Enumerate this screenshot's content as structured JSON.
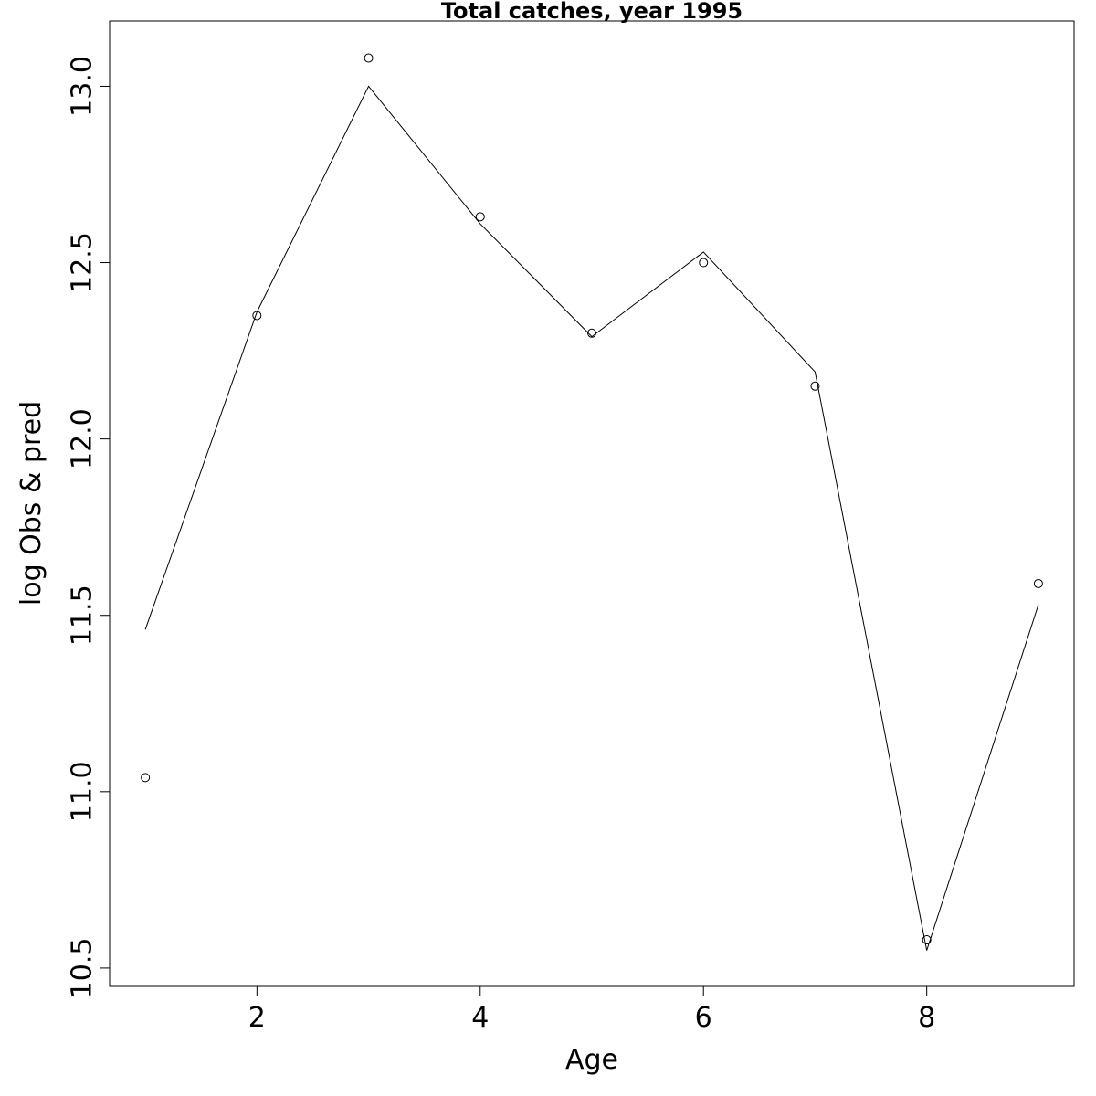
{
  "chart_data": {
    "type": "line",
    "title": "Total catches, year 1995",
    "xlabel": "Age",
    "ylabel": "log Obs & pred",
    "xlim": [
      0.68,
      9.32
    ],
    "ylim": [
      10.448,
      13.185
    ],
    "x_ticks": [
      2,
      4,
      6,
      8
    ],
    "y_ticks": [
      10.5,
      11.0,
      11.5,
      12.0,
      12.5,
      13.0
    ],
    "x_tick_labels": [
      "2",
      "4",
      "6",
      "8"
    ],
    "y_tick_labels": [
      "10.5",
      "11.0",
      "11.5",
      "12.0",
      "12.5",
      "13.0"
    ],
    "grid": false,
    "series": [
      {
        "kind": "points",
        "marker": "open-circle",
        "x": [
          1,
          2,
          3,
          4,
          5,
          6,
          7,
          8,
          9
        ],
        "y": [
          11.04,
          12.35,
          13.08,
          12.63,
          12.3,
          12.5,
          12.15,
          10.58,
          11.59
        ]
      },
      {
        "kind": "line",
        "x": [
          1,
          2,
          3,
          4,
          5,
          6,
          7,
          8,
          9
        ],
        "y": [
          11.46,
          12.36,
          13.0,
          12.61,
          12.29,
          12.53,
          12.19,
          10.55,
          11.53
        ]
      }
    ]
  }
}
